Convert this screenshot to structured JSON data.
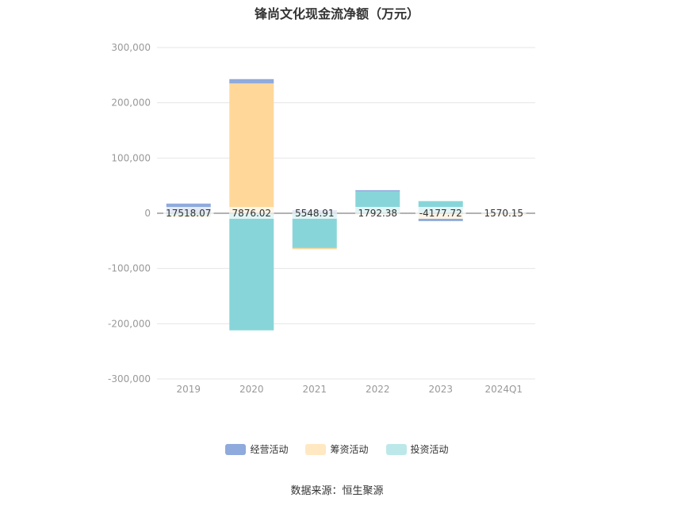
{
  "chart_data": {
    "type": "bar",
    "title": "锋尚文化现金流净额（万元）",
    "categories": [
      "2019",
      "2020",
      "2021",
      "2022",
      "2023",
      "2024Q1"
    ],
    "ylim": [
      -300000,
      300000
    ],
    "yticks": [
      300000,
      200000,
      100000,
      0,
      -100000,
      -200000,
      -300000
    ],
    "ytick_labels": [
      "300,000",
      "200,000",
      "100,000",
      "0",
      "-100,000",
      "-200,000",
      "-300,000"
    ],
    "grid": true,
    "legend_position": "bottom",
    "series": [
      {
        "name": "经营活动",
        "color": "#8faadc",
        "values": [
          17518.07,
          7876.02,
          5548.91,
          1792.38,
          -4177.72,
          1570.15
        ]
      },
      {
        "name": "筹资活动",
        "color": "#ffd899",
        "values": [
          -2000,
          235000,
          -1500,
          -1000,
          -10000,
          -300
        ]
      },
      {
        "name": "投资活动",
        "color": "#88d5d9",
        "values": [
          -5000,
          -212000,
          -63000,
          40000,
          22000,
          -800
        ]
      }
    ],
    "data_labels": [
      "17518.07",
      "7876.02",
      "5548.91",
      "1792.38",
      "-4177.72",
      "1570.15"
    ]
  },
  "legend": {
    "items": [
      {
        "label": "经营活动",
        "color": "#8faadc"
      },
      {
        "label": "筹资活动",
        "color": "#ffe8c2"
      },
      {
        "label": "投资活动",
        "color": "#bde8ea"
      }
    ]
  },
  "source": "数据来源：恒生聚源"
}
